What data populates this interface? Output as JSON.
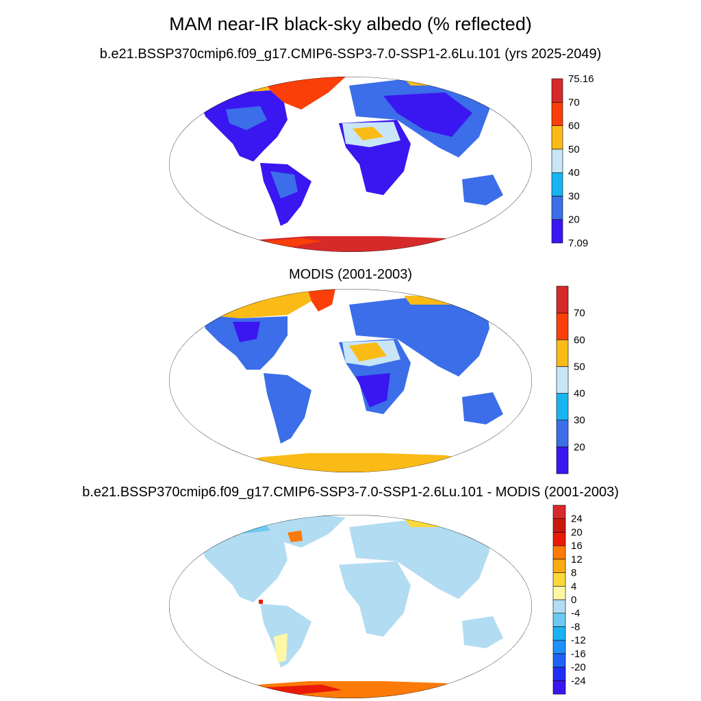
{
  "main_title": "MAM near-IR black-sky albedo (% reflected)",
  "panels": [
    {
      "title": "b.e21.BSSP370cmip6.f09_g17.CMIP6-SSP3-7.0-SSP1-2.6Lu.101 (yrs 2025-2049)",
      "colorbar": {
        "colors": [
          "#3a17f0",
          "#3b6ee8",
          "#16b5f2",
          "#c8e6f7",
          "#fbbb16",
          "#fb3f08",
          "#d62a2a"
        ],
        "labels": [
          "7.09",
          "20",
          "30",
          "40",
          "50",
          "60",
          "70",
          "75.16"
        ],
        "label_mode": "edges"
      }
    },
    {
      "title": "MODIS (2001-2003)",
      "colorbar": {
        "colors": [
          "#3a17f0",
          "#3b6ee8",
          "#16b5f2",
          "#c8e6f7",
          "#fbbb16",
          "#fb3f08",
          "#d62a2a"
        ],
        "labels": [
          "20",
          "30",
          "40",
          "50",
          "60",
          "70"
        ],
        "label_mode": "interior"
      }
    },
    {
      "title": "b.e21.BSSP370cmip6.f09_g17.CMIP6-SSP3-7.0-SSP1-2.6Lu.101 - MODIS (2001-2003)",
      "colorbar": {
        "colors": [
          "#3a17f0",
          "#1f2ef5",
          "#1f62f5",
          "#1e90f7",
          "#18b3f2",
          "#6cc9f2",
          "#b2dcf2",
          "#fdf7a6",
          "#fbd93a",
          "#fbac10",
          "#fb7a08",
          "#ea1a08",
          "#c81a0b",
          "#d62a2a"
        ],
        "labels": [
          "24",
          "20",
          "16",
          "12",
          "8",
          "4",
          "0",
          "-4",
          "-8",
          "-12",
          "-16",
          "-20",
          "-24"
        ],
        "label_mode": "interior"
      }
    }
  ]
}
